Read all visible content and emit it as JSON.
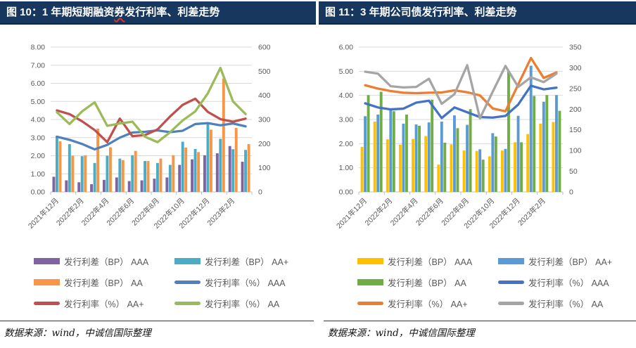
{
  "panels": [
    {
      "title": {
        "prefix": "图 10：1 年期短期融资",
        "misspelled": "券",
        "suffix": "发行利率、利差走势"
      },
      "source_note": "数据来源：wind，中诚信国际整理",
      "legend": [
        {
          "label": "发行利差（BP） AAA",
          "color": "#8064A2",
          "swatch": "bar"
        },
        {
          "label": "发行利差（BP） AA+",
          "color": "#4BACC6",
          "swatch": "bar"
        },
        {
          "label": "发行利差（BP） AA",
          "color": "#F79646",
          "swatch": "bar"
        },
        {
          "label": "发行利率（%） AAA",
          "color": "#4F81BD",
          "swatch": "line"
        },
        {
          "label": "发行利率（%） AA+",
          "color": "#C0504D",
          "swatch": "line"
        },
        {
          "label": "发行利率（%） AA",
          "color": "#9BBB59",
          "swatch": "line"
        }
      ],
      "chart_data": {
        "type": "bar",
        "subtype": "combo-bar-line",
        "categories": [
          "2021年12月",
          "2022年1月",
          "2022年2月",
          "2022年3月",
          "2022年4月",
          "2022年5月",
          "2022年6月",
          "2022年7月",
          "2022年8月",
          "2022年9月",
          "2022年10月",
          "2022年11月",
          "2022年12月",
          "2023年1月",
          "2023年2月",
          "2023年3月"
        ],
        "x_label_interval": 2,
        "grid": true,
        "left_axis": {
          "min": 0,
          "max": 8,
          "step": 1,
          "decimals": 2
        },
        "right_axis": {
          "min": 0,
          "max": 600,
          "step": 100,
          "decimals": 0
        },
        "bar_series": [
          {
            "name": "发行利差（BP） AAA",
            "axis": "right",
            "color": "#8064A2",
            "values": [
              63,
              48,
              40,
              32,
              50,
              60,
              45,
              48,
              55,
              60,
              112,
              135,
              152,
              160,
              190,
              125
            ]
          },
          {
            "name": "发行利差（BP） AA+",
            "axis": "right",
            "color": "#4BACC6",
            "values": [
              232,
              198,
              148,
              120,
              150,
              138,
              152,
              128,
              120,
              112,
              208,
              178,
              282,
              220,
              177,
              174
            ]
          },
          {
            "name": "发行利差（BP） AA",
            "axis": "right",
            "color": "#F79646",
            "values": [
              210,
              150,
              152,
              262,
              185,
              132,
              170,
              128,
              138,
              152,
              184,
              165,
              258,
              470,
              265,
              198
            ]
          }
        ],
        "line_series": [
          {
            "name": "发行利率（%） AAA",
            "axis": "left",
            "color": "#4F81BD",
            "values": [
              3.05,
              2.88,
              2.65,
              2.35,
              2.6,
              3.0,
              3.28,
              3.32,
              3.4,
              3.3,
              3.38,
              3.75,
              3.8,
              3.68,
              3.78,
              3.62
            ]
          },
          {
            "name": "发行利率（%） AA+",
            "axis": "left",
            "color": "#C0504D",
            "values": [
              4.5,
              4.3,
              3.9,
              3.42,
              2.75,
              4.05,
              3.08,
              3.14,
              3.45,
              4.17,
              4.81,
              5.15,
              4.42,
              4.02,
              3.88,
              4.05
            ]
          },
          {
            "name": "发行利率（%） AA",
            "axis": "left",
            "color": "#9BBB59",
            "values": [
              4.4,
              3.75,
              4.45,
              4.95,
              3.65,
              3.78,
              3.88,
              3.05,
              2.75,
              3.3,
              3.95,
              4.45,
              5.45,
              6.85,
              5.0,
              4.3
            ]
          }
        ]
      }
    },
    {
      "title": {
        "prefix": "图 11：3 年期公司债发行利率、利差走势",
        "misspelled": "",
        "suffix": ""
      },
      "source_note": "数据来源：wind，中诚信国际整理",
      "legend": [
        {
          "label": "发行利差（BP） AAA",
          "color": "#FFC000",
          "swatch": "bar"
        },
        {
          "label": "发行利差（BP） AA+",
          "color": "#5B9BD5",
          "swatch": "bar"
        },
        {
          "label": "发行利差（BP） AA",
          "color": "#70AD47",
          "swatch": "bar"
        },
        {
          "label": "发行利率（%） AAA",
          "color": "#4472C4",
          "swatch": "line"
        },
        {
          "label": "发行利率（%） AA+",
          "color": "#ED7D31",
          "swatch": "line"
        },
        {
          "label": "发行利率（%） AA",
          "color": "#A5A5A5",
          "swatch": "line"
        }
      ],
      "chart_data": {
        "type": "bar",
        "subtype": "combo-bar-line",
        "categories": [
          "2021年12月",
          "2022年1月",
          "2022年2月",
          "2022年3月",
          "2022年4月",
          "2022年5月",
          "2022年6月",
          "2022年7月",
          "2022年8月",
          "2022年9月",
          "2022年10月",
          "2022年11月",
          "2022年12月",
          "2023年1月",
          "2023年2月",
          "2023年3月"
        ],
        "x_label_interval": 2,
        "grid": true,
        "left_axis": {
          "min": 0,
          "max": 6,
          "step": 1,
          "decimals": 2
        },
        "right_axis": {
          "min": 0,
          "max": 350,
          "step": 50,
          "decimals": 0
        },
        "bar_series": [
          {
            "name": "发行利差（BP） AAA",
            "axis": "right",
            "color": "#FFC000",
            "values": [
              109,
              170,
              127,
              114,
              128,
              135,
              66,
              115,
              100,
              99,
              86,
              100,
              120,
              140,
              165,
              169
            ]
          },
          {
            "name": "发行利差（BP） AA+",
            "axis": "right",
            "color": "#5B9BD5",
            "values": [
              183,
              187,
              198,
              165,
              163,
              168,
              170,
              185,
              162,
              103,
              142,
              104,
              184,
              305,
              218,
              234
            ]
          },
          {
            "name": "发行利差（BP） AA",
            "axis": "right",
            "color": "#70AD47",
            "values": [
              234,
              242,
              195,
              187,
              160,
              223,
              119,
              154,
              200,
              78,
              134,
              291,
              120,
              232,
              234,
              196
            ]
          }
        ],
        "line_series": [
          {
            "name": "发行利率（%） AAA",
            "axis": "left",
            "color": "#4472C4",
            "values": [
              3.67,
              3.5,
              3.42,
              3.45,
              3.7,
              3.78,
              3.06,
              3.5,
              3.3,
              3.1,
              3.08,
              3.15,
              3.62,
              4.4,
              4.25,
              4.32
            ]
          },
          {
            "name": "发行利率（%） AA+",
            "axis": "left",
            "color": "#ED7D31",
            "values": [
              4.42,
              4.28,
              4.18,
              4.11,
              4.09,
              4.11,
              4.12,
              4.21,
              4.13,
              4.0,
              3.46,
              3.34,
              4.45,
              5.55,
              4.72,
              4.95
            ]
          },
          {
            "name": "发行利率（%） AA",
            "axis": "left",
            "color": "#A5A5A5",
            "values": [
              4.98,
              4.9,
              4.38,
              4.33,
              4.35,
              4.69,
              3.65,
              4.05,
              5.25,
              3.05,
              4.15,
              5.22,
              4.35,
              4.75,
              4.55,
              4.9
            ]
          }
        ]
      }
    }
  ]
}
